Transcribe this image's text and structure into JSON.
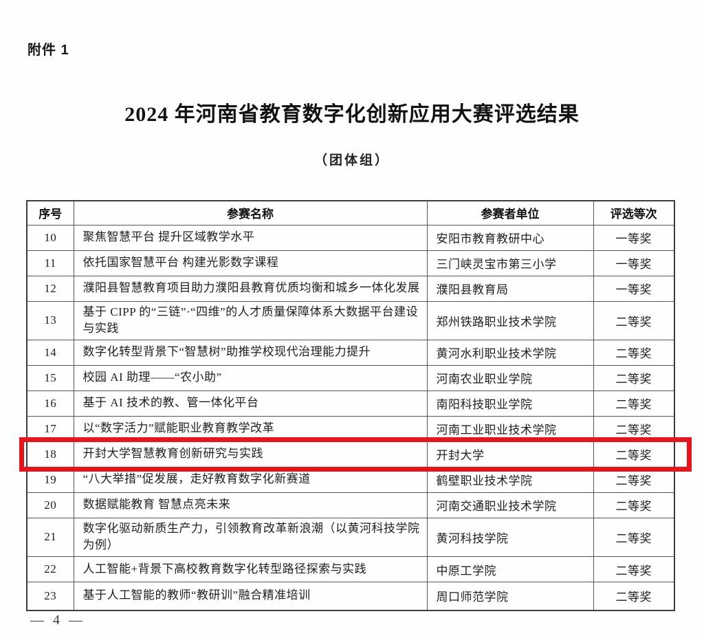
{
  "page": {
    "attachment_label": "附件 1",
    "title": "2024 年河南省教育数字化创新应用大赛评选结果",
    "subtitle": "（团体组）",
    "page_number": "— 4 —"
  },
  "highlight": {
    "border_color": "#e8131b",
    "highlighted_row_no": "18"
  },
  "table": {
    "columns": [
      "序号",
      "参赛名称",
      "参赛者单位",
      "评选等次"
    ],
    "rows": [
      {
        "no": "10",
        "name": "聚焦智慧平台 提升区域教学水平",
        "org": "安阳市教育教研中心",
        "award": "一等奖",
        "highlighted": false
      },
      {
        "no": "11",
        "name": "依托国家智慧平台 构建光影数字课程",
        "org": "三门峡灵宝市第三小学",
        "award": "一等奖",
        "highlighted": false
      },
      {
        "no": "12",
        "name": "濮阳县智慧教育项目助力濮阳县教育优质均衡和城乡一体化发展",
        "org": "濮阳县教育局",
        "award": "一等奖",
        "highlighted": false
      },
      {
        "no": "13",
        "name": "基于 CIPP 的“三链”·“四维”的人才质量保障体系大数据平台建设与实践",
        "org": "郑州铁路职业技术学院",
        "award": "二等奖",
        "highlighted": false
      },
      {
        "no": "14",
        "name": "数字化转型背景下“智慧树”助推学校现代治理能力提升",
        "org": "黄河水利职业技术学院",
        "award": "二等奖",
        "highlighted": false
      },
      {
        "no": "15",
        "name": "校园 AI 助理——“农小助”",
        "org": "河南农业职业学院",
        "award": "二等奖",
        "highlighted": false
      },
      {
        "no": "16",
        "name": "基于 AI 技术的教、管一体化平台",
        "org": "南阳科技职业学院",
        "award": "二等奖",
        "highlighted": false
      },
      {
        "no": "17",
        "name": "以“数字活力”赋能职业教育教学改革",
        "org": "河南工业职业技术学院",
        "award": "二等奖",
        "highlighted": false
      },
      {
        "no": "18",
        "name": "开封大学智慧教育创新研究与实践",
        "org": "开封大学",
        "award": "二等奖",
        "highlighted": true
      },
      {
        "no": "19",
        "name": "“八大举措”促发展，走好教育数字化新赛道",
        "org": "鹤壁职业技术学院",
        "award": "二等奖",
        "highlighted": false
      },
      {
        "no": "20",
        "name": "数据赋能教育 智慧点亮未来",
        "org": "河南交通职业技术学院",
        "award": "二等奖",
        "highlighted": false
      },
      {
        "no": "21",
        "name": "数字化驱动新质生产力，引领教育改革新浪潮（以黄河科技学院为例）",
        "org": "黄河科技学院",
        "award": "二等奖",
        "highlighted": false
      },
      {
        "no": "22",
        "name": "人工智能+背景下高校教育数字化转型路径探索与实践",
        "org": "中原工学院",
        "award": "二等奖",
        "highlighted": false
      },
      {
        "no": "23",
        "name": "基于人工智能的教师“教研训”融合精准培训",
        "org": "周口师范学院",
        "award": "二等奖",
        "highlighted": false
      }
    ]
  }
}
